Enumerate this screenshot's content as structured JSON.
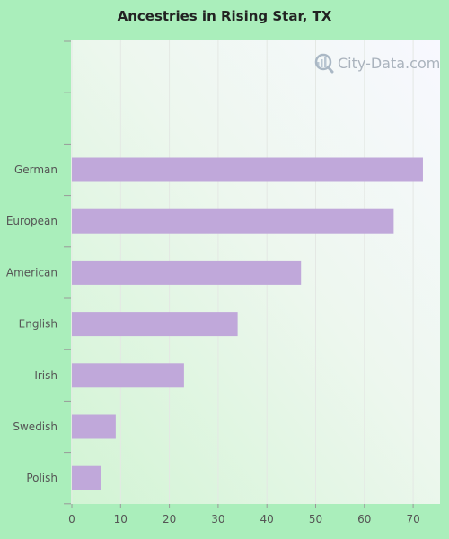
{
  "chart_data": {
    "type": "bar",
    "orientation": "horizontal",
    "title": "Ancestries in Rising Star, TX",
    "categories": [
      "German",
      "European",
      "American",
      "English",
      "Irish",
      "Swedish",
      "Polish"
    ],
    "values": [
      72,
      66,
      47,
      34,
      23,
      9,
      6
    ],
    "xticks": [
      0,
      10,
      20,
      30,
      40,
      50,
      60,
      70
    ],
    "xlim": [
      0,
      75
    ],
    "grid": true,
    "bar_color": "#c0a8da",
    "background_color": "#aaeebb"
  },
  "watermark": {
    "text": "City-Data.com",
    "icon": "magnifier-icon"
  }
}
